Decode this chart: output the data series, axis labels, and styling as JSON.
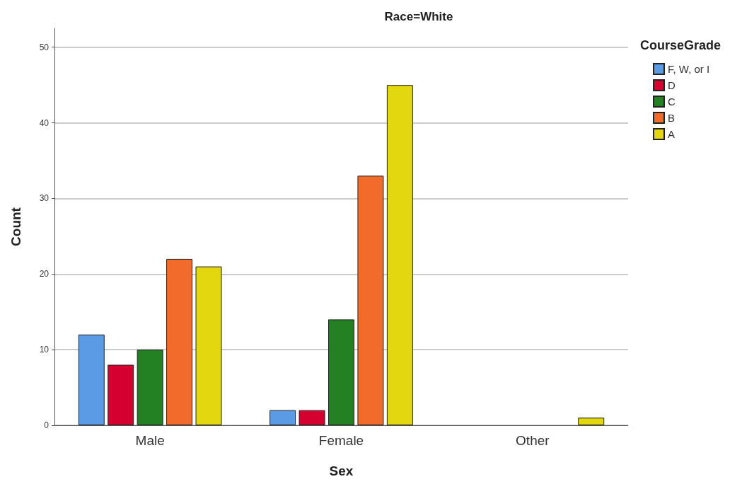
{
  "chart_data": {
    "type": "bar",
    "title": "Race=White",
    "xlabel": "Sex",
    "ylabel": "Count",
    "legend_title": "CourseGrade",
    "categories": [
      "Male",
      "Female",
      "Other"
    ],
    "series": [
      {
        "name": "F, W, or I",
        "color": "#5b9be6",
        "values": [
          12,
          2,
          null
        ]
      },
      {
        "name": "D",
        "color": "#d5002f",
        "values": [
          8,
          2,
          null
        ]
      },
      {
        "name": "C",
        "color": "#238023",
        "values": [
          10,
          14,
          null
        ]
      },
      {
        "name": "B",
        "color": "#f26b2a",
        "values": [
          22,
          33,
          null
        ]
      },
      {
        "name": "A",
        "color": "#e3d80f",
        "values": [
          21,
          45,
          1
        ]
      }
    ],
    "ylim": [
      0,
      52.5
    ],
    "yticks": [
      0,
      10,
      20,
      30,
      40,
      50
    ],
    "grid": "y",
    "legend": "top right"
  }
}
